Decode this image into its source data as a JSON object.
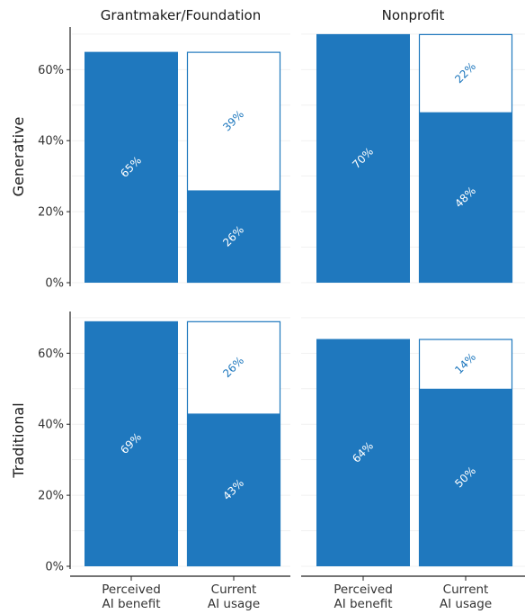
{
  "chart_data": {
    "type": "bar",
    "columns": [
      "Grantmaker/Foundation",
      "Nonprofit"
    ],
    "rows": [
      "Generative",
      "Traditional"
    ],
    "categories": [
      [
        "Perceived",
        "AI benefit"
      ],
      [
        "Current",
        "AI usage"
      ]
    ],
    "yticks": [
      "0%",
      "20%",
      "40%",
      "60%"
    ],
    "ylim": [
      0,
      72
    ],
    "colors": {
      "fill": "#1f78be",
      "outline": "#1f78be",
      "background": "#ffffff"
    },
    "panels": [
      {
        "column": "Grantmaker/Foundation",
        "row": "Generative",
        "perceived": 65,
        "usage": 26,
        "gap": 39,
        "perceived_label": "65%",
        "usage_label": "26%",
        "gap_label": "39%"
      },
      {
        "column": "Nonprofit",
        "row": "Generative",
        "perceived": 70,
        "usage": 48,
        "gap": 22,
        "perceived_label": "70%",
        "usage_label": "48%",
        "gap_label": "22%"
      },
      {
        "column": "Grantmaker/Foundation",
        "row": "Traditional",
        "perceived": 69,
        "usage": 43,
        "gap": 26,
        "perceived_label": "69%",
        "usage_label": "43%",
        "gap_label": "26%"
      },
      {
        "column": "Nonprofit",
        "row": "Traditional",
        "perceived": 64,
        "usage": 50,
        "gap": 14,
        "perceived_label": "64%",
        "usage_label": "50%",
        "gap_label": "14%"
      }
    ]
  }
}
